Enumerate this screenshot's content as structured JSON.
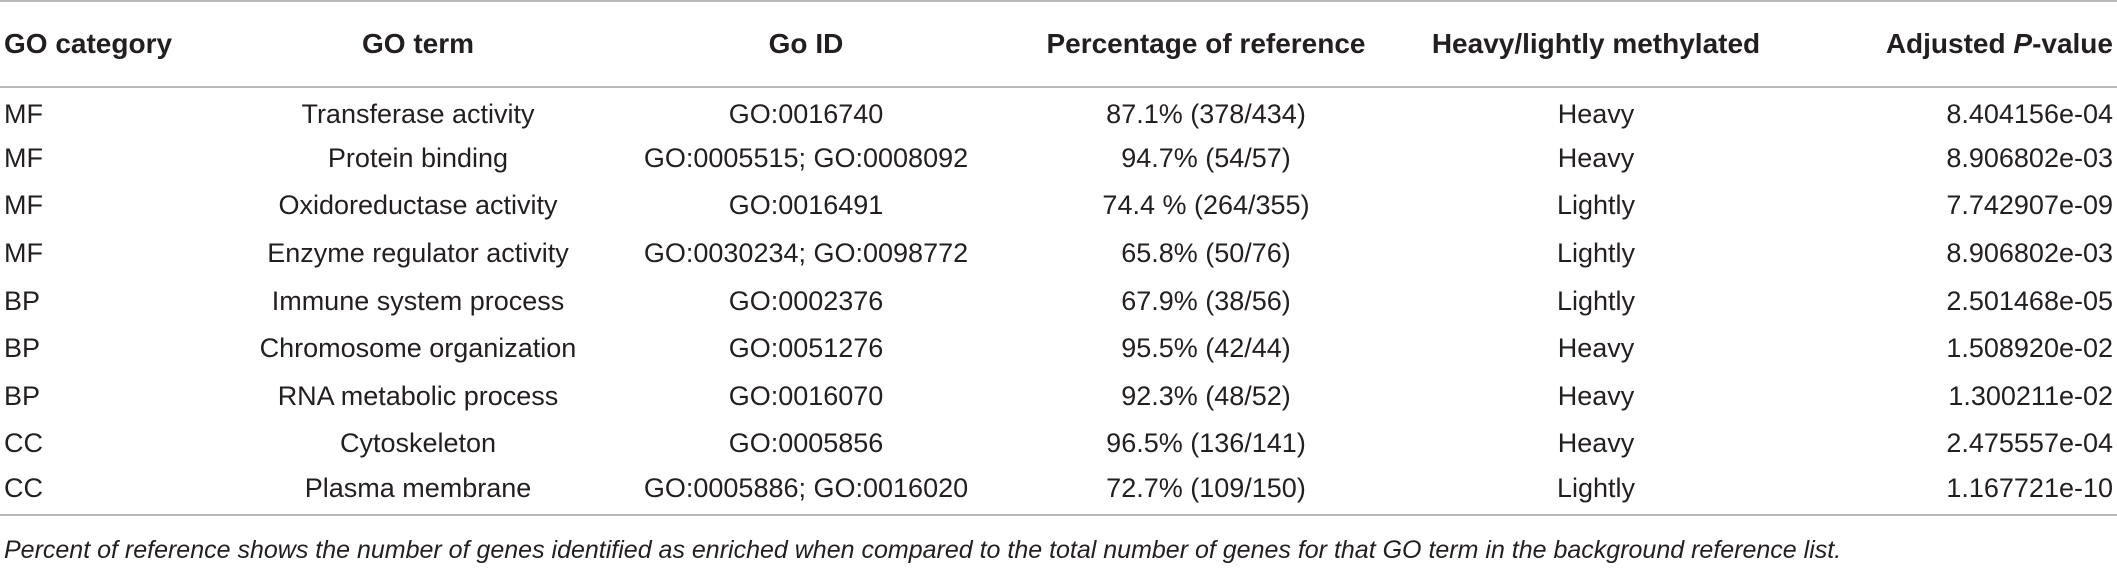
{
  "table": {
    "headers": {
      "category": "GO category",
      "term": "GO term",
      "id": "Go ID",
      "percentage": "Percentage of reference",
      "methylation": "Heavy/lightly methylated",
      "pvalue_prefix": "Adjusted ",
      "pvalue_italic": "P",
      "pvalue_suffix": "-value"
    },
    "rows": [
      {
        "category": "MF",
        "term": "Transferase activity",
        "id": "GO:0016740",
        "percentage": "87.1% (378/434)",
        "methylation": "Heavy",
        "pvalue": "8.404156e-04"
      },
      {
        "category": "MF",
        "term": "Protein binding",
        "id": "GO:0005515; GO:0008092",
        "percentage": "94.7% (54/57)",
        "methylation": "Heavy",
        "pvalue": "8.906802e-03"
      },
      {
        "category": "MF",
        "term": "Oxidoreductase activity",
        "id": "GO:0016491",
        "percentage": "74.4 % (264/355)",
        "methylation": "Lightly",
        "pvalue": "7.742907e-09"
      },
      {
        "category": "MF",
        "term": "Enzyme regulator activity",
        "id": "GO:0030234; GO:0098772",
        "percentage": "65.8% (50/76)",
        "methylation": "Lightly",
        "pvalue": "8.906802e-03"
      },
      {
        "category": "BP",
        "term": "Immune system process",
        "id": "GO:0002376",
        "percentage": "67.9% (38/56)",
        "methylation": "Lightly",
        "pvalue": "2.501468e-05"
      },
      {
        "category": "BP",
        "term": "Chromosome organization",
        "id": "GO:0051276",
        "percentage": "95.5% (42/44)",
        "methylation": "Heavy",
        "pvalue": "1.508920e-02"
      },
      {
        "category": "BP",
        "term": "RNA metabolic process",
        "id": "GO:0016070",
        "percentage": "92.3% (48/52)",
        "methylation": "Heavy",
        "pvalue": "1.300211e-02"
      },
      {
        "category": "CC",
        "term": "Cytoskeleton",
        "id": "GO:0005856",
        "percentage": "96.5% (136/141)",
        "methylation": "Heavy",
        "pvalue": "2.475557e-04"
      },
      {
        "category": "CC",
        "term": "Plasma membrane",
        "id": "GO:0005886; GO:0016020",
        "percentage": "72.7% (109/150)",
        "methylation": "Lightly",
        "pvalue": "1.167721e-10"
      }
    ]
  },
  "footnote": "Percent of reference shows the number of genes identified as enriched when compared to the total number of genes for that GO term in the background reference list."
}
